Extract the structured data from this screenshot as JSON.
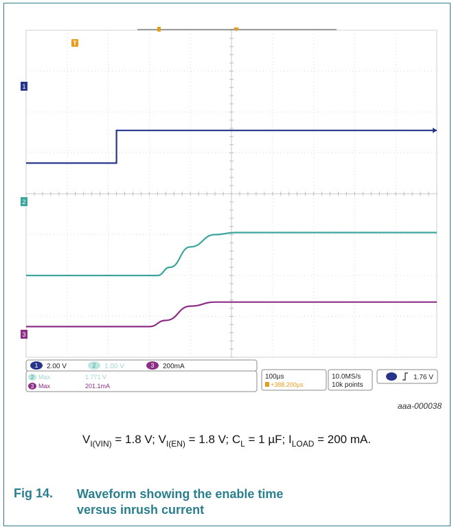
{
  "chart_data": {
    "type": "line",
    "x": {
      "divisions": 10,
      "time_per_div": "100µs"
    },
    "y": {
      "divisions": 8
    },
    "series": [
      {
        "name": "",
        "channel": "1",
        "color": "#27348b",
        "marker_label": "1",
        "points": [
          [
            0,
            4.75
          ],
          [
            2.2,
            4.75
          ],
          [
            2.2,
            5.55
          ],
          [
            10,
            5.55
          ]
        ]
      },
      {
        "name": "",
        "channel": "2",
        "color": "#3aa59a",
        "marker_label": "2",
        "points": [
          [
            0,
            2.0
          ],
          [
            3.2,
            2.0
          ],
          [
            3.5,
            2.2
          ],
          [
            4.0,
            2.7
          ],
          [
            4.6,
            3.0
          ],
          [
            5.1,
            3.05
          ],
          [
            10,
            3.05
          ]
        ]
      },
      {
        "name": "",
        "channel": "3",
        "color": "#8c2e86",
        "marker_label": "3",
        "points": [
          [
            0,
            -0.75
          ],
          [
            3.0,
            -0.75
          ],
          [
            3.4,
            -0.6
          ],
          [
            4.0,
            -0.25
          ],
          [
            4.6,
            -0.15
          ],
          [
            10,
            -0.15
          ]
        ]
      }
    ],
    "trigger_marker": "T",
    "readouts": {
      "ch1_scale": "2.00 V",
      "ch2_scale": "1.00 V",
      "ch3_scale": "200mA",
      "meas1_label": "Max",
      "meas1_value": "1.771 V",
      "meas2_label": "Max",
      "meas2_value": "201.1mA",
      "timebase": "100µs",
      "delay": "+388.200µs",
      "sample_rate": "10.0MS/s",
      "record_length": "10k points",
      "trigger_level": "1.76 V",
      "ch_num_1": "1",
      "ch_num_2": "2",
      "ch_num_3": "3"
    }
  },
  "figure": {
    "reference": "aaa-000038",
    "number": "Fig 14.",
    "title": "Waveform showing the enable time versus inrush current"
  },
  "caption": {
    "vin_sub": "I(VIN)",
    "vin_val": " = 1.8 V; ",
    "en_sub": "I(EN)",
    "en_val": " = 1.8 V; ",
    "cl_sub": "L",
    "cl_val": " = 1 µF; ",
    "il_sub": "LOAD",
    "il_val": " = 200 mA."
  },
  "colors": {
    "ch1": "#27348b",
    "ch2": "#3aa59a",
    "ch3": "#8c2e86",
    "accent": "#2a7f8e"
  }
}
